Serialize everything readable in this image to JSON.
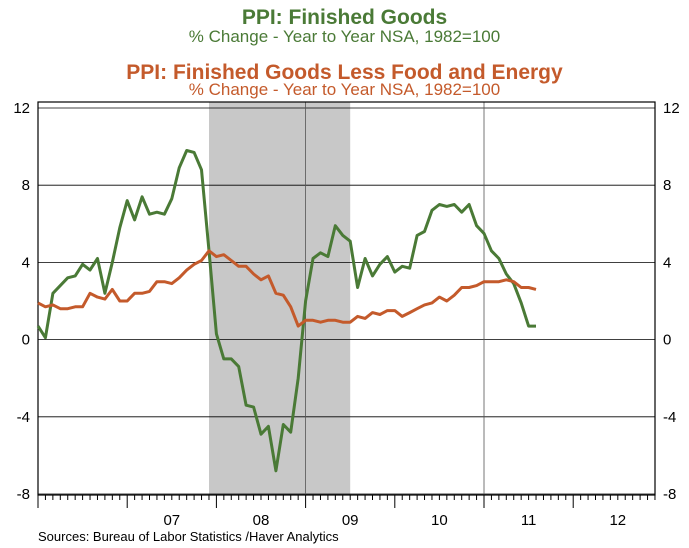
{
  "chart_data": {
    "type": "line",
    "titles": [
      {
        "title": "PPI: Finished Goods",
        "subtitle": "% Change - Year to Year    NSA, 1982=100",
        "color": "#4a7a36"
      },
      {
        "title": "PPI: Finished Goods Less Food and Energy",
        "subtitle": "% Change - Year to Year    NSA, 1982=100",
        "color": "#c45a2b"
      }
    ],
    "ylim": [
      -8,
      12
    ],
    "yticks": [
      -8,
      -4,
      0,
      4,
      8,
      12
    ],
    "ytick_labels": [
      "-8",
      "-4",
      "0",
      "4",
      "8",
      "12"
    ],
    "xlim": [
      2006.0,
      2012.917
    ],
    "xtick_labels": [
      {
        "label": "07",
        "x": 2007.5
      },
      {
        "label": "08",
        "x": 2008.5
      },
      {
        "label": "09",
        "x": 2009.5
      },
      {
        "label": "10",
        "x": 2010.5
      },
      {
        "label": "11",
        "x": 2011.5
      },
      {
        "label": "12",
        "x": 2012.5
      }
    ],
    "recession_band": [
      2007.917,
      2009.5
    ],
    "vertical_gridlines": [
      2009.0,
      2011.0
    ],
    "source": "Sources:  Bureau of Labor Statistics /Haver Analytics",
    "series": [
      {
        "name": "PPI: Finished Goods",
        "color": "#4a7a36",
        "x_start": 2006.0,
        "x_step": 0.0833333,
        "values": [
          0.7,
          0.1,
          2.4,
          2.8,
          3.2,
          3.3,
          3.9,
          3.6,
          4.2,
          2.4,
          4.0,
          5.8,
          7.2,
          6.2,
          7.4,
          6.5,
          6.6,
          6.5,
          7.3,
          8.9,
          9.8,
          9.7,
          8.8,
          4.6,
          0.3,
          -1.0,
          -1.0,
          -1.4,
          -3.4,
          -3.5,
          -4.9,
          -4.5,
          -6.8,
          -4.4,
          -4.8,
          -2.0,
          2.0,
          4.2,
          4.5,
          4.3,
          5.9,
          5.4,
          5.1,
          2.7,
          4.2,
          3.3,
          3.9,
          4.3,
          3.5,
          3.8,
          3.7,
          5.4,
          5.6,
          6.7,
          7.0,
          6.9,
          7.0,
          6.6,
          7.0,
          5.9,
          5.5,
          4.6,
          4.2,
          3.4,
          2.9,
          1.9,
          0.7,
          0.7
        ]
      },
      {
        "name": "PPI: Finished Goods Less Food and Energy",
        "color": "#c45a2b",
        "x_start": 2006.0,
        "x_step": 0.0833333,
        "values": [
          1.9,
          1.7,
          1.8,
          1.6,
          1.6,
          1.7,
          1.7,
          2.4,
          2.2,
          2.1,
          2.6,
          2.0,
          2.0,
          2.4,
          2.4,
          2.5,
          3.0,
          3.0,
          2.9,
          3.2,
          3.6,
          3.9,
          4.1,
          4.6,
          4.3,
          4.4,
          4.1,
          3.8,
          3.8,
          3.4,
          3.1,
          3.3,
          2.4,
          2.3,
          1.7,
          0.7,
          1.0,
          1.0,
          0.9,
          1.0,
          1.0,
          0.9,
          0.9,
          1.2,
          1.1,
          1.4,
          1.3,
          1.5,
          1.5,
          1.2,
          1.4,
          1.6,
          1.8,
          1.9,
          2.2,
          2.0,
          2.3,
          2.7,
          2.7,
          2.8,
          3.0,
          3.0,
          3.0,
          3.1,
          3.0,
          2.7,
          2.7,
          2.6
        ]
      }
    ]
  }
}
